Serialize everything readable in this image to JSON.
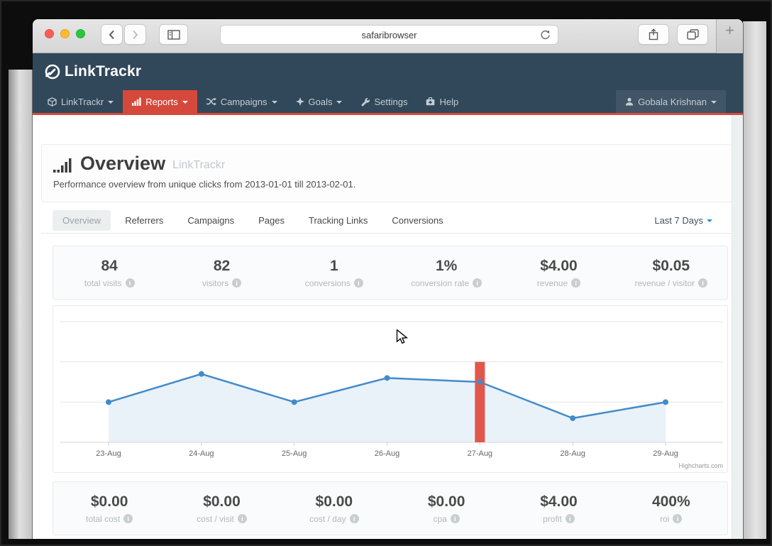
{
  "browser": {
    "url_text": "safaribrowser",
    "new_tab_label": "+"
  },
  "brand": {
    "logo_text": "LinkTrackr"
  },
  "nav": {
    "items": [
      {
        "label": "LinkTrackr",
        "caret": true
      },
      {
        "label": "Reports",
        "caret": true,
        "active": true
      },
      {
        "label": "Campaigns",
        "caret": true
      },
      {
        "label": "Goals",
        "caret": true
      },
      {
        "label": "Settings",
        "caret": false
      },
      {
        "label": "Help",
        "caret": false
      }
    ],
    "user": {
      "label": "Gobala Krishnan"
    }
  },
  "page": {
    "title": "Overview",
    "title_suffix": "LinkTrackr",
    "subtitle": "Performance overview from unique clicks from 2013-01-01 till 2013-02-01."
  },
  "tabs": {
    "items": [
      "Overview",
      "Referrers",
      "Campaigns",
      "Pages",
      "Tracking Links",
      "Conversions"
    ],
    "active_index": 0,
    "range_selector": "Last 7 Days"
  },
  "stats_top": [
    {
      "value": "84",
      "label": "total visits"
    },
    {
      "value": "82",
      "label": "visitors"
    },
    {
      "value": "1",
      "label": "conversions"
    },
    {
      "value": "1%",
      "label": "conversion rate"
    },
    {
      "value": "$4.00",
      "label": "revenue"
    },
    {
      "value": "$0.05",
      "label": "revenue / visitor"
    }
  ],
  "stats_bottom": [
    {
      "value": "$0.00",
      "label": "total cost"
    },
    {
      "value": "$0.00",
      "label": "cost / visit"
    },
    {
      "value": "$0.00",
      "label": "cost / day"
    },
    {
      "value": "$0.00",
      "label": "cpa"
    },
    {
      "value": "$4.00",
      "label": "profit"
    },
    {
      "value": "400%",
      "label": "roi"
    }
  ],
  "chart_data": {
    "type": "line",
    "title": "",
    "xlabel": "",
    "ylabel": "",
    "categories": [
      "23-Aug",
      "24-Aug",
      "25-Aug",
      "26-Aug",
      "27-Aug",
      "28-Aug",
      "29-Aug"
    ],
    "series": [
      {
        "name": "visits",
        "type": "area-line",
        "color": "#428bca",
        "fill": "#e9f1f9",
        "values": [
          10,
          17,
          10,
          16,
          15,
          6,
          10
        ]
      },
      {
        "name": "selected-day-highlight",
        "type": "column",
        "color": "#e2574c",
        "values": [
          null,
          null,
          null,
          null,
          20,
          null,
          null
        ]
      }
    ],
    "ylim": [
      0,
      30
    ],
    "gridline_values": [
      10,
      20,
      30
    ],
    "grid": true,
    "legend": false,
    "credit": "Highcharts.com"
  },
  "colors": {
    "navy": "#31475a",
    "accent_red": "#d4493b",
    "line_blue": "#428bca",
    "bar_red": "#e2574c",
    "caret_blue": "#2e8fd8"
  }
}
